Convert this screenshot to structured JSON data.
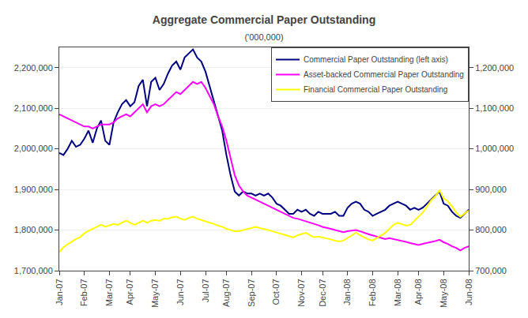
{
  "chart_data": {
    "type": "line",
    "title": "Aggregate Commercial Paper Outstanding",
    "subtitle": "('000,000)",
    "categories": [
      "Jan-07",
      null,
      null,
      null,
      null,
      null,
      "Feb-07",
      null,
      null,
      null,
      null,
      null,
      "Mar-07",
      null,
      null,
      null,
      null,
      "Apr-07",
      null,
      null,
      null,
      null,
      null,
      "May-07",
      null,
      null,
      null,
      null,
      null,
      "Jun-07",
      null,
      null,
      null,
      null,
      null,
      "Jul-07",
      null,
      null,
      null,
      null,
      "Aug-07",
      null,
      null,
      null,
      null,
      null,
      "Sep-07",
      null,
      null,
      null,
      null,
      null,
      "Oct-07",
      null,
      null,
      null,
      null,
      null,
      "Nov-07",
      null,
      null,
      null,
      null,
      "Dec-07",
      null,
      null,
      null,
      null,
      null,
      "Jan-08",
      null,
      null,
      null,
      null,
      null,
      "Feb-08",
      null,
      null,
      null,
      null,
      null,
      "Mar-08",
      null,
      null,
      null,
      null,
      "Apr-08",
      null,
      null,
      null,
      null,
      null,
      "May-08",
      null,
      null,
      null,
      null,
      null,
      "Jun-08"
    ],
    "series": [
      {
        "name": "Commercial Paper Outstanding (left axis)",
        "color": "#000080",
        "values": [
          1990000,
          1985000,
          2000000,
          2020000,
          2005000,
          2010000,
          2025000,
          2045000,
          2015000,
          2050000,
          2070000,
          2020000,
          2010000,
          2065000,
          2090000,
          2110000,
          2120000,
          2105000,
          2115000,
          2155000,
          2170000,
          2105000,
          2165000,
          2175000,
          2145000,
          2160000,
          2185000,
          2205000,
          2215000,
          2195000,
          2225000,
          2235000,
          2245000,
          2225000,
          2215000,
          2190000,
          2155000,
          2115000,
          2085000,
          2045000,
          1985000,
          1935000,
          1895000,
          1885000,
          1895000,
          1890000,
          1890000,
          1885000,
          1890000,
          1885000,
          1890000,
          1880000,
          1865000,
          1860000,
          1850000,
          1840000,
          1840000,
          1850000,
          1845000,
          1850000,
          1840000,
          1835000,
          1845000,
          1840000,
          1840000,
          1840000,
          1845000,
          1835000,
          1835000,
          1855000,
          1865000,
          1870000,
          1865000,
          1850000,
          1845000,
          1835000,
          1840000,
          1845000,
          1850000,
          1860000,
          1865000,
          1870000,
          1865000,
          1860000,
          1850000,
          1855000,
          1850000,
          1855000,
          1865000,
          1875000,
          1885000,
          1895000,
          1865000,
          1860000,
          1845000,
          1835000,
          1830000,
          1840000,
          1850000
        ]
      },
      {
        "name": "Asset-backed Commercial Paper Outstanding",
        "color": "#ff00ff",
        "values": [
          2085000,
          2080000,
          2075000,
          2070000,
          2065000,
          2060000,
          2055000,
          2055000,
          2050000,
          2055000,
          2060000,
          2060000,
          2060000,
          2065000,
          2075000,
          2080000,
          2085000,
          2080000,
          2090000,
          2100000,
          2110000,
          2090000,
          2105000,
          2110000,
          2105000,
          2110000,
          2120000,
          2130000,
          2140000,
          2135000,
          2145000,
          2155000,
          2165000,
          2160000,
          2165000,
          2150000,
          2130000,
          2110000,
          2080000,
          2055000,
          2020000,
          1975000,
          1935000,
          1910000,
          1895000,
          1885000,
          1880000,
          1875000,
          1870000,
          1865000,
          1860000,
          1855000,
          1850000,
          1845000,
          1840000,
          1835000,
          1830000,
          1828000,
          1825000,
          1822000,
          1818000,
          1815000,
          1812000,
          1808000,
          1806000,
          1803000,
          1800000,
          1798000,
          1795000,
          1797000,
          1798000,
          1800000,
          1797000,
          1793000,
          1790000,
          1787000,
          1784000,
          1781000,
          1778000,
          1780000,
          1778000,
          1776000,
          1773000,
          1771000,
          1768000,
          1766000,
          1763000,
          1766000,
          1768000,
          1770000,
          1773000,
          1776000,
          1770000,
          1766000,
          1760000,
          1756000,
          1750000,
          1756000,
          1760000
        ]
      },
      {
        "name": "Financial Commercial Paper Outstanding",
        "color": "#ffff00",
        "values": [
          1745000,
          1758000,
          1765000,
          1772000,
          1778000,
          1783000,
          1792000,
          1798000,
          1803000,
          1808000,
          1813000,
          1808000,
          1811000,
          1815000,
          1813000,
          1818000,
          1823000,
          1818000,
          1813000,
          1818000,
          1823000,
          1818000,
          1823000,
          1825000,
          1823000,
          1828000,
          1828000,
          1831000,
          1833000,
          1828000,
          1825000,
          1830000,
          1833000,
          1828000,
          1825000,
          1821000,
          1818000,
          1815000,
          1811000,
          1808000,
          1803000,
          1800000,
          1797000,
          1797000,
          1800000,
          1803000,
          1805000,
          1808000,
          1805000,
          1803000,
          1800000,
          1797000,
          1794000,
          1790000,
          1787000,
          1784000,
          1782000,
          1787000,
          1790000,
          1793000,
          1787000,
          1782000,
          1784000,
          1782000,
          1780000,
          1777000,
          1774000,
          1772000,
          1774000,
          1780000,
          1787000,
          1794000,
          1787000,
          1782000,
          1777000,
          1774000,
          1780000,
          1787000,
          1793000,
          1803000,
          1813000,
          1818000,
          1815000,
          1811000,
          1813000,
          1823000,
          1833000,
          1843000,
          1858000,
          1873000,
          1883000,
          1898000,
          1878000,
          1871000,
          1858000,
          1843000,
          1833000,
          1841000,
          1848000
        ]
      }
    ],
    "ylim": [
      1700000,
      2250000
    ],
    "yticks": [
      {
        "value": 1700000,
        "label": "1,700,000"
      },
      {
        "value": 1800000,
        "label": "1,800,000"
      },
      {
        "value": 1900000,
        "label": "1,900,000"
      },
      {
        "value": 2000000,
        "label": "2,000,000"
      },
      {
        "value": 2100000,
        "label": "2,100,000"
      },
      {
        "value": 2200000,
        "label": "2,200,000"
      }
    ],
    "y2lim": [
      700000,
      1250000
    ],
    "y2ticks": [
      {
        "value": 700000,
        "label": "700,000"
      },
      {
        "value": 800000,
        "label": "800,000"
      },
      {
        "value": 900000,
        "label": "900,000"
      },
      {
        "value": 1000000,
        "label": "1,000,000"
      },
      {
        "value": 1100000,
        "label": "1,100,000"
      },
      {
        "value": 1200000,
        "label": "1,200,000"
      }
    ],
    "grid": true,
    "legend": "upper right"
  }
}
